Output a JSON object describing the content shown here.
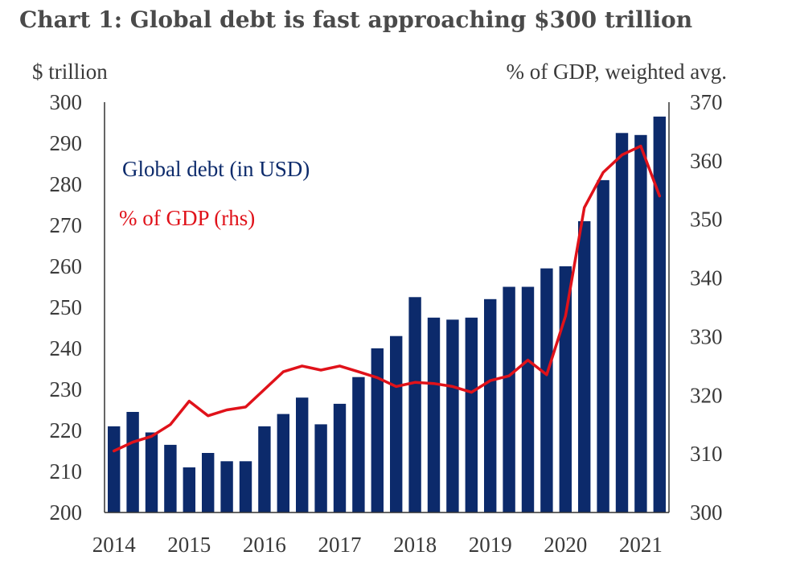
{
  "title": "Chart 1: Global debt is fast approaching $300 trillion",
  "colors": {
    "bar": "#0c2a6b",
    "line": "#e0121a",
    "text": "#3a3a3a"
  },
  "chart_data": {
    "type": "bar",
    "title": "Chart 1: Global debt is fast approaching $300 trillion",
    "left_axis_label": "$ trillion",
    "right_axis_label": "% of GDP, weighted avg.",
    "ylim": [
      200,
      300
    ],
    "y2lim": [
      300,
      370
    ],
    "y_ticks": [
      "300",
      "290",
      "280",
      "270",
      "260",
      "250",
      "240",
      "230",
      "220",
      "210",
      "200"
    ],
    "y2_ticks": [
      "370",
      "360",
      "350",
      "340",
      "330",
      "320",
      "310",
      "300"
    ],
    "x_tick_labels": [
      "2014",
      "2015",
      "2016",
      "2017",
      "2018",
      "2019",
      "2020",
      "2021"
    ],
    "grid": false,
    "legend_position": "top-left",
    "series": [
      {
        "name": "Global debt (in USD)",
        "axis": "left",
        "type": "bar",
        "values": [
          221,
          224.5,
          219.5,
          216.5,
          211,
          214.5,
          212.5,
          212.5,
          221,
          224,
          228,
          221.5,
          226.5,
          233,
          240,
          243,
          252.5,
          247.5,
          247,
          247.5,
          252,
          255,
          255,
          259.5,
          260,
          271,
          281,
          292.5,
          292,
          296.5
        ]
      },
      {
        "name": "% of GDP (rhs)",
        "axis": "right",
        "type": "line",
        "values": [
          310.5,
          312,
          313,
          315,
          319,
          316.5,
          317.5,
          318,
          321,
          324,
          325,
          324.3,
          325,
          324,
          323,
          321.5,
          322.2,
          322,
          321.5,
          320.5,
          322.5,
          323.3,
          326,
          323.5,
          333.5,
          352,
          358,
          361,
          362.5,
          354
        ]
      }
    ]
  }
}
